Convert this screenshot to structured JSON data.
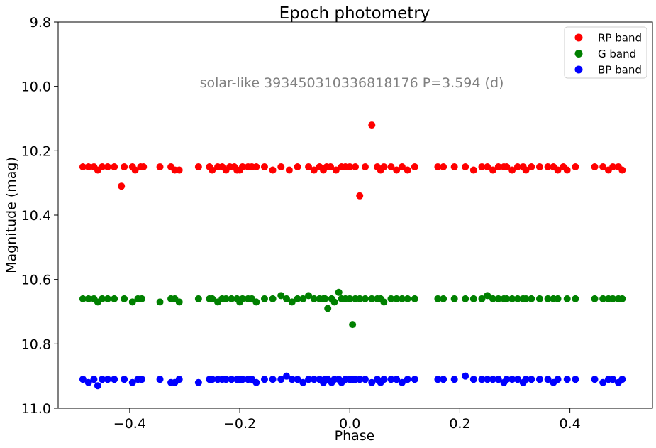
{
  "chart_data": {
    "type": "scatter",
    "title": "Epoch photometry",
    "xlabel": "Phase",
    "ylabel": "Magnitude (mag)",
    "annotation": "solar-like 393450310336818176 P=3.594 (d)",
    "xlim": [
      -0.53,
      0.55
    ],
    "ylim": [
      11.0,
      9.8
    ],
    "y_inverted": true,
    "xticks": [
      -0.4,
      -0.2,
      0.0,
      0.2,
      0.4
    ],
    "xtick_labels": [
      "−0.4",
      "−0.2",
      "0.0",
      "0.2",
      "0.4"
    ],
    "yticks": [
      9.8,
      10.0,
      10.2,
      10.4,
      10.6,
      10.8,
      11.0
    ],
    "ytick_labels": [
      "9.8",
      "10.0",
      "10.2",
      "10.4",
      "10.6",
      "10.8",
      "11.0"
    ],
    "grid": false,
    "legend_position": "top-right",
    "series": [
      {
        "name": "RP band",
        "color": "#ff0000",
        "x": [
          -0.485,
          -0.475,
          -0.465,
          -0.458,
          -0.45,
          -0.44,
          -0.428,
          -0.415,
          -0.41,
          -0.395,
          -0.39,
          -0.38,
          -0.375,
          -0.345,
          -0.325,
          -0.318,
          -0.31,
          -0.275,
          -0.255,
          -0.25,
          -0.24,
          -0.232,
          -0.225,
          -0.218,
          -0.21,
          -0.205,
          -0.2,
          -0.195,
          -0.185,
          -0.178,
          -0.17,
          -0.155,
          -0.14,
          -0.125,
          -0.11,
          -0.095,
          -0.075,
          -0.065,
          -0.055,
          -0.048,
          -0.042,
          -0.035,
          -0.025,
          -0.015,
          -0.008,
          0.0,
          0.01,
          0.018,
          0.028,
          0.04,
          0.05,
          0.056,
          0.062,
          0.075,
          0.085,
          0.095,
          0.105,
          0.118,
          0.16,
          0.17,
          0.19,
          0.21,
          0.225,
          0.24,
          0.25,
          0.26,
          0.27,
          0.28,
          0.285,
          0.295,
          0.305,
          0.315,
          0.32,
          0.33,
          0.345,
          0.36,
          0.37,
          0.378,
          0.388,
          0.395,
          0.41,
          0.445,
          0.46,
          0.47,
          0.478,
          0.488,
          0.495
        ],
        "y": [
          10.25,
          10.25,
          10.25,
          10.26,
          10.25,
          10.25,
          10.25,
          10.31,
          10.25,
          10.25,
          10.26,
          10.25,
          10.25,
          10.25,
          10.25,
          10.26,
          10.26,
          10.25,
          10.25,
          10.26,
          10.25,
          10.25,
          10.26,
          10.25,
          10.25,
          10.26,
          10.26,
          10.25,
          10.25,
          10.25,
          10.25,
          10.25,
          10.26,
          10.25,
          10.26,
          10.25,
          10.25,
          10.26,
          10.25,
          10.26,
          10.25,
          10.25,
          10.26,
          10.25,
          10.25,
          10.25,
          10.25,
          10.34,
          10.25,
          10.12,
          10.25,
          10.26,
          10.25,
          10.25,
          10.26,
          10.25,
          10.26,
          10.25,
          10.25,
          10.25,
          10.25,
          10.25,
          10.26,
          10.25,
          10.25,
          10.26,
          10.25,
          10.25,
          10.25,
          10.26,
          10.25,
          10.25,
          10.26,
          10.25,
          10.25,
          10.25,
          10.25,
          10.26,
          10.25,
          10.26,
          10.25,
          10.25,
          10.25,
          10.26,
          10.25,
          10.25,
          10.26
        ]
      },
      {
        "name": "G band",
        "color": "#008000",
        "x": [
          -0.485,
          -0.475,
          -0.465,
          -0.458,
          -0.45,
          -0.44,
          -0.428,
          -0.41,
          -0.395,
          -0.385,
          -0.378,
          -0.345,
          -0.325,
          -0.318,
          -0.31,
          -0.275,
          -0.255,
          -0.25,
          -0.24,
          -0.232,
          -0.225,
          -0.215,
          -0.205,
          -0.2,
          -0.195,
          -0.185,
          -0.178,
          -0.17,
          -0.155,
          -0.14,
          -0.125,
          -0.115,
          -0.105,
          -0.095,
          -0.085,
          -0.075,
          -0.065,
          -0.055,
          -0.048,
          -0.045,
          -0.04,
          -0.033,
          -0.028,
          -0.02,
          -0.015,
          -0.008,
          0.0,
          0.005,
          0.01,
          0.018,
          0.028,
          0.04,
          0.05,
          0.056,
          0.062,
          0.075,
          0.085,
          0.095,
          0.105,
          0.118,
          0.16,
          0.17,
          0.19,
          0.21,
          0.225,
          0.24,
          0.25,
          0.26,
          0.27,
          0.28,
          0.285,
          0.295,
          0.305,
          0.315,
          0.32,
          0.33,
          0.345,
          0.36,
          0.37,
          0.378,
          0.395,
          0.41,
          0.445,
          0.46,
          0.47,
          0.478,
          0.488,
          0.495
        ],
        "y": [
          10.66,
          10.66,
          10.66,
          10.67,
          10.66,
          10.66,
          10.66,
          10.66,
          10.67,
          10.66,
          10.66,
          10.67,
          10.66,
          10.66,
          10.67,
          10.66,
          10.66,
          10.66,
          10.67,
          10.66,
          10.66,
          10.66,
          10.66,
          10.67,
          10.66,
          10.66,
          10.66,
          10.67,
          10.66,
          10.66,
          10.65,
          10.66,
          10.67,
          10.66,
          10.66,
          10.65,
          10.66,
          10.66,
          10.66,
          10.66,
          10.69,
          10.66,
          10.67,
          10.64,
          10.66,
          10.66,
          10.66,
          10.74,
          10.66,
          10.66,
          10.66,
          10.66,
          10.66,
          10.66,
          10.67,
          10.66,
          10.66,
          10.66,
          10.66,
          10.66,
          10.66,
          10.66,
          10.66,
          10.66,
          10.66,
          10.66,
          10.65,
          10.66,
          10.66,
          10.66,
          10.66,
          10.66,
          10.66,
          10.66,
          10.66,
          10.66,
          10.66,
          10.66,
          10.66,
          10.66,
          10.66,
          10.66,
          10.66,
          10.66,
          10.66,
          10.66,
          10.66,
          10.66
        ]
      },
      {
        "name": "BP band",
        "color": "#0000ff",
        "x": [
          -0.485,
          -0.475,
          -0.465,
          -0.458,
          -0.45,
          -0.44,
          -0.428,
          -0.41,
          -0.395,
          -0.385,
          -0.378,
          -0.345,
          -0.325,
          -0.318,
          -0.31,
          -0.275,
          -0.255,
          -0.25,
          -0.24,
          -0.232,
          -0.225,
          -0.215,
          -0.205,
          -0.2,
          -0.195,
          -0.185,
          -0.178,
          -0.17,
          -0.155,
          -0.14,
          -0.125,
          -0.115,
          -0.105,
          -0.095,
          -0.085,
          -0.075,
          -0.065,
          -0.055,
          -0.048,
          -0.045,
          -0.04,
          -0.033,
          -0.028,
          -0.02,
          -0.015,
          -0.008,
          0.0,
          0.005,
          0.01,
          0.018,
          0.028,
          0.04,
          0.05,
          0.056,
          0.062,
          0.075,
          0.085,
          0.095,
          0.105,
          0.118,
          0.16,
          0.17,
          0.19,
          0.21,
          0.225,
          0.24,
          0.25,
          0.26,
          0.27,
          0.28,
          0.285,
          0.295,
          0.305,
          0.315,
          0.32,
          0.33,
          0.345,
          0.36,
          0.37,
          0.378,
          0.395,
          0.41,
          0.445,
          0.46,
          0.47,
          0.478,
          0.488,
          0.495
        ],
        "y": [
          10.91,
          10.92,
          10.91,
          10.93,
          10.91,
          10.91,
          10.91,
          10.91,
          10.92,
          10.91,
          10.91,
          10.91,
          10.92,
          10.92,
          10.91,
          10.92,
          10.91,
          10.91,
          10.91,
          10.91,
          10.91,
          10.91,
          10.91,
          10.91,
          10.91,
          10.91,
          10.91,
          10.92,
          10.91,
          10.91,
          10.91,
          10.9,
          10.91,
          10.91,
          10.92,
          10.91,
          10.91,
          10.91,
          10.92,
          10.91,
          10.91,
          10.92,
          10.91,
          10.91,
          10.92,
          10.91,
          10.91,
          10.91,
          10.91,
          10.91,
          10.91,
          10.92,
          10.91,
          10.92,
          10.91,
          10.91,
          10.91,
          10.92,
          10.91,
          10.91,
          10.91,
          10.91,
          10.91,
          10.9,
          10.91,
          10.91,
          10.91,
          10.91,
          10.91,
          10.92,
          10.91,
          10.91,
          10.91,
          10.92,
          10.91,
          10.91,
          10.91,
          10.91,
          10.92,
          10.91,
          10.91,
          10.91,
          10.91,
          10.92,
          10.91,
          10.91,
          10.92,
          10.91
        ]
      }
    ]
  }
}
